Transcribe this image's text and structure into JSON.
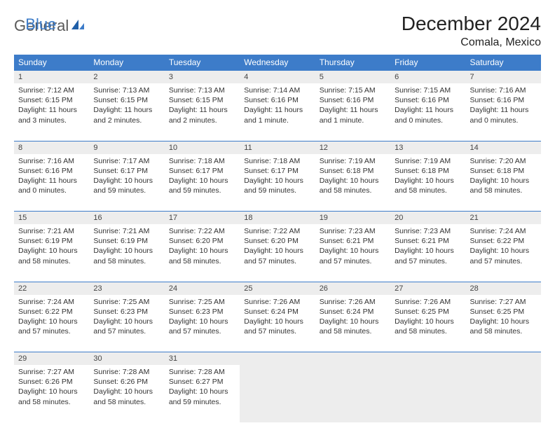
{
  "logo": {
    "general": "General",
    "blue": "Blue"
  },
  "title": "December 2024",
  "location": "Comala, Mexico",
  "colors": {
    "header_bg": "#3d7cc9",
    "header_text": "#ffffff",
    "daynum_bg": "#ededed",
    "border": "#3d7cc9",
    "text": "#333333",
    "page_bg": "#ffffff"
  },
  "weekdays": [
    "Sunday",
    "Monday",
    "Tuesday",
    "Wednesday",
    "Thursday",
    "Friday",
    "Saturday"
  ],
  "weeks": [
    [
      {
        "n": "1",
        "sr": "Sunrise: 7:12 AM",
        "ss": "Sunset: 6:15 PM",
        "d1": "Daylight: 11 hours",
        "d2": "and 3 minutes."
      },
      {
        "n": "2",
        "sr": "Sunrise: 7:13 AM",
        "ss": "Sunset: 6:15 PM",
        "d1": "Daylight: 11 hours",
        "d2": "and 2 minutes."
      },
      {
        "n": "3",
        "sr": "Sunrise: 7:13 AM",
        "ss": "Sunset: 6:15 PM",
        "d1": "Daylight: 11 hours",
        "d2": "and 2 minutes."
      },
      {
        "n": "4",
        "sr": "Sunrise: 7:14 AM",
        "ss": "Sunset: 6:16 PM",
        "d1": "Daylight: 11 hours",
        "d2": "and 1 minute."
      },
      {
        "n": "5",
        "sr": "Sunrise: 7:15 AM",
        "ss": "Sunset: 6:16 PM",
        "d1": "Daylight: 11 hours",
        "d2": "and 1 minute."
      },
      {
        "n": "6",
        "sr": "Sunrise: 7:15 AM",
        "ss": "Sunset: 6:16 PM",
        "d1": "Daylight: 11 hours",
        "d2": "and 0 minutes."
      },
      {
        "n": "7",
        "sr": "Sunrise: 7:16 AM",
        "ss": "Sunset: 6:16 PM",
        "d1": "Daylight: 11 hours",
        "d2": "and 0 minutes."
      }
    ],
    [
      {
        "n": "8",
        "sr": "Sunrise: 7:16 AM",
        "ss": "Sunset: 6:16 PM",
        "d1": "Daylight: 11 hours",
        "d2": "and 0 minutes."
      },
      {
        "n": "9",
        "sr": "Sunrise: 7:17 AM",
        "ss": "Sunset: 6:17 PM",
        "d1": "Daylight: 10 hours",
        "d2": "and 59 minutes."
      },
      {
        "n": "10",
        "sr": "Sunrise: 7:18 AM",
        "ss": "Sunset: 6:17 PM",
        "d1": "Daylight: 10 hours",
        "d2": "and 59 minutes."
      },
      {
        "n": "11",
        "sr": "Sunrise: 7:18 AM",
        "ss": "Sunset: 6:17 PM",
        "d1": "Daylight: 10 hours",
        "d2": "and 59 minutes."
      },
      {
        "n": "12",
        "sr": "Sunrise: 7:19 AM",
        "ss": "Sunset: 6:18 PM",
        "d1": "Daylight: 10 hours",
        "d2": "and 58 minutes."
      },
      {
        "n": "13",
        "sr": "Sunrise: 7:19 AM",
        "ss": "Sunset: 6:18 PM",
        "d1": "Daylight: 10 hours",
        "d2": "and 58 minutes."
      },
      {
        "n": "14",
        "sr": "Sunrise: 7:20 AM",
        "ss": "Sunset: 6:18 PM",
        "d1": "Daylight: 10 hours",
        "d2": "and 58 minutes."
      }
    ],
    [
      {
        "n": "15",
        "sr": "Sunrise: 7:21 AM",
        "ss": "Sunset: 6:19 PM",
        "d1": "Daylight: 10 hours",
        "d2": "and 58 minutes."
      },
      {
        "n": "16",
        "sr": "Sunrise: 7:21 AM",
        "ss": "Sunset: 6:19 PM",
        "d1": "Daylight: 10 hours",
        "d2": "and 58 minutes."
      },
      {
        "n": "17",
        "sr": "Sunrise: 7:22 AM",
        "ss": "Sunset: 6:20 PM",
        "d1": "Daylight: 10 hours",
        "d2": "and 58 minutes."
      },
      {
        "n": "18",
        "sr": "Sunrise: 7:22 AM",
        "ss": "Sunset: 6:20 PM",
        "d1": "Daylight: 10 hours",
        "d2": "and 57 minutes."
      },
      {
        "n": "19",
        "sr": "Sunrise: 7:23 AM",
        "ss": "Sunset: 6:21 PM",
        "d1": "Daylight: 10 hours",
        "d2": "and 57 minutes."
      },
      {
        "n": "20",
        "sr": "Sunrise: 7:23 AM",
        "ss": "Sunset: 6:21 PM",
        "d1": "Daylight: 10 hours",
        "d2": "and 57 minutes."
      },
      {
        "n": "21",
        "sr": "Sunrise: 7:24 AM",
        "ss": "Sunset: 6:22 PM",
        "d1": "Daylight: 10 hours",
        "d2": "and 57 minutes."
      }
    ],
    [
      {
        "n": "22",
        "sr": "Sunrise: 7:24 AM",
        "ss": "Sunset: 6:22 PM",
        "d1": "Daylight: 10 hours",
        "d2": "and 57 minutes."
      },
      {
        "n": "23",
        "sr": "Sunrise: 7:25 AM",
        "ss": "Sunset: 6:23 PM",
        "d1": "Daylight: 10 hours",
        "d2": "and 57 minutes."
      },
      {
        "n": "24",
        "sr": "Sunrise: 7:25 AM",
        "ss": "Sunset: 6:23 PM",
        "d1": "Daylight: 10 hours",
        "d2": "and 57 minutes."
      },
      {
        "n": "25",
        "sr": "Sunrise: 7:26 AM",
        "ss": "Sunset: 6:24 PM",
        "d1": "Daylight: 10 hours",
        "d2": "and 57 minutes."
      },
      {
        "n": "26",
        "sr": "Sunrise: 7:26 AM",
        "ss": "Sunset: 6:24 PM",
        "d1": "Daylight: 10 hours",
        "d2": "and 58 minutes."
      },
      {
        "n": "27",
        "sr": "Sunrise: 7:26 AM",
        "ss": "Sunset: 6:25 PM",
        "d1": "Daylight: 10 hours",
        "d2": "and 58 minutes."
      },
      {
        "n": "28",
        "sr": "Sunrise: 7:27 AM",
        "ss": "Sunset: 6:25 PM",
        "d1": "Daylight: 10 hours",
        "d2": "and 58 minutes."
      }
    ],
    [
      {
        "n": "29",
        "sr": "Sunrise: 7:27 AM",
        "ss": "Sunset: 6:26 PM",
        "d1": "Daylight: 10 hours",
        "d2": "and 58 minutes."
      },
      {
        "n": "30",
        "sr": "Sunrise: 7:28 AM",
        "ss": "Sunset: 6:26 PM",
        "d1": "Daylight: 10 hours",
        "d2": "and 58 minutes."
      },
      {
        "n": "31",
        "sr": "Sunrise: 7:28 AM",
        "ss": "Sunset: 6:27 PM",
        "d1": "Daylight: 10 hours",
        "d2": "and 59 minutes."
      },
      {
        "empty": true
      },
      {
        "empty": true
      },
      {
        "empty": true
      },
      {
        "empty": true
      }
    ]
  ]
}
